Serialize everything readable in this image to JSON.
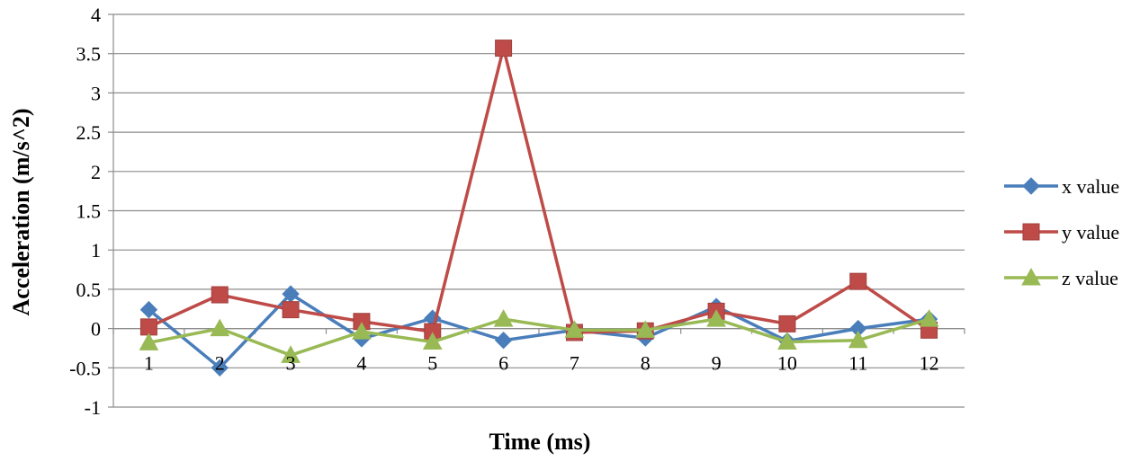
{
  "chart_data": {
    "type": "line",
    "title": "",
    "xlabel": "Time (ms)",
    "ylabel": "Acceleration (m/s^2)",
    "x": [
      1,
      2,
      3,
      4,
      5,
      6,
      7,
      8,
      9,
      10,
      11,
      12
    ],
    "x_tick_labels": [
      "1",
      "2",
      "3",
      "4",
      "5",
      "6",
      "7",
      "8",
      "9",
      "10",
      "11",
      "12"
    ],
    "ylim": [
      -1,
      4
    ],
    "y_ticks": [
      -1,
      -0.5,
      0,
      0.5,
      1,
      1.5,
      2,
      2.5,
      3,
      3.5,
      4
    ],
    "y_tick_labels": [
      "-1",
      "-0.5",
      "0",
      "0.5",
      "1",
      "1.5",
      "2",
      "2.5",
      "3",
      "3.5",
      "4"
    ],
    "grid": true,
    "legend_position": "right",
    "series": [
      {
        "name": "x value",
        "marker": "diamond",
        "color": "#4A7EBB",
        "values": [
          0.24,
          -0.5,
          0.44,
          -0.13,
          0.13,
          -0.15,
          -0.02,
          -0.12,
          0.28,
          -0.16,
          0.0,
          0.12
        ]
      },
      {
        "name": "y value",
        "marker": "square",
        "color": "#BE4B48",
        "values": [
          0.02,
          0.43,
          0.24,
          0.09,
          -0.04,
          3.57,
          -0.05,
          -0.03,
          0.22,
          0.06,
          0.6,
          -0.02
        ]
      },
      {
        "name": "z value",
        "marker": "triangle",
        "color": "#98B954",
        "values": [
          -0.18,
          0.0,
          -0.34,
          -0.04,
          -0.17,
          0.12,
          -0.02,
          -0.02,
          0.12,
          -0.17,
          -0.15,
          0.12
        ]
      }
    ]
  }
}
